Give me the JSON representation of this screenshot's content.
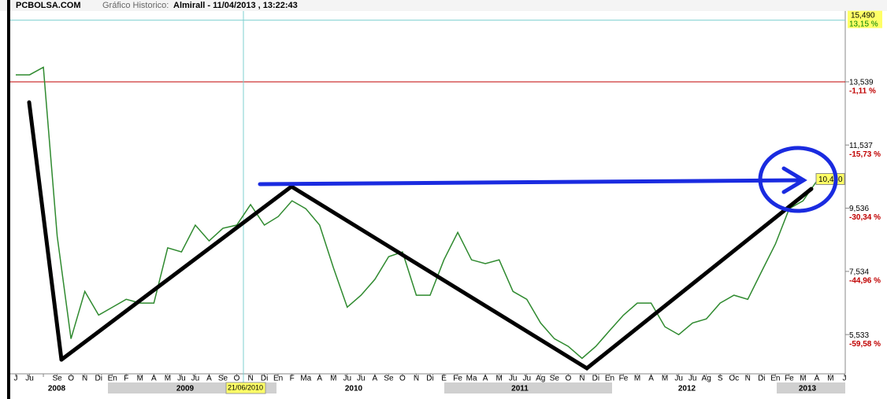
{
  "chart_data": {
    "type": "line",
    "site": "PCBOLSA.COM",
    "title_label": "Gráfico Historico:",
    "title": "Almirall - 11/04/2013 , 13:22:43",
    "categories": [
      "J",
      "Ju",
      null,
      "Se",
      "O",
      "N",
      "Di",
      "En",
      "F",
      "M",
      "A",
      "M",
      "Ju",
      "Ju",
      "A",
      "Se",
      "O",
      "N",
      "Di",
      "En",
      "F",
      "Ma",
      "A",
      "M",
      "Ju",
      "Ju",
      "A",
      "Se",
      "O",
      "N",
      "Di",
      "E",
      "Fe",
      "Ma",
      "A",
      "M",
      "Ju",
      "Ju",
      "Ag",
      "Se",
      "O",
      "N",
      "Di",
      "En",
      "Fe",
      "M",
      "A",
      "M",
      "Ju",
      "Ju",
      "Ag",
      "S",
      "Oc",
      "N",
      "Di",
      "En",
      "Fe",
      "M",
      "A",
      "M",
      "J"
    ],
    "years": [
      "2008",
      "2009",
      "2010",
      "2011",
      "2012",
      "2013"
    ],
    "series": [
      {
        "name": "Almirall",
        "color": "#2f8a2f",
        "values": [
          13.76,
          13.76,
          14.0,
          8.65,
          5.4,
          6.9,
          6.15,
          6.4,
          6.65,
          6.53,
          6.53,
          8.28,
          8.15,
          9.0,
          8.5,
          8.9,
          9.0,
          9.65,
          9.0,
          9.27,
          9.77,
          9.52,
          9.0,
          7.65,
          6.4,
          6.78,
          7.28,
          8.0,
          8.15,
          6.78,
          6.78,
          7.9,
          8.77,
          7.9,
          7.78,
          7.9,
          6.9,
          6.65,
          5.9,
          5.4,
          5.16,
          4.78,
          5.16,
          5.66,
          6.15,
          6.53,
          6.53,
          5.78,
          5.53,
          5.9,
          6.03,
          6.53,
          6.78,
          6.65,
          7.53,
          8.4,
          9.52,
          9.77,
          10.4,
          null,
          null
        ]
      }
    ],
    "ylim": [
      4.29,
      16.13
    ],
    "yticks": [
      {
        "value": 5.533,
        "label": "5,533"
      },
      {
        "value": 7.534,
        "label": "7,534"
      },
      {
        "value": 9.536,
        "label": "9,536"
      },
      {
        "value": 11.537,
        "label": "11,537"
      },
      {
        "value": 13.539,
        "label": "13,539"
      }
    ],
    "ytick_pct": [
      "-59,58 %",
      "-44,96 %",
      "-30,34 %",
      "-15,73 %",
      "-1,11 %"
    ],
    "cursor": {
      "value": 15.49,
      "label": "15,490",
      "pct": "13,15 %",
      "date": "21/06/2010"
    },
    "last": {
      "value": 10.46,
      "label": "10,460"
    }
  }
}
